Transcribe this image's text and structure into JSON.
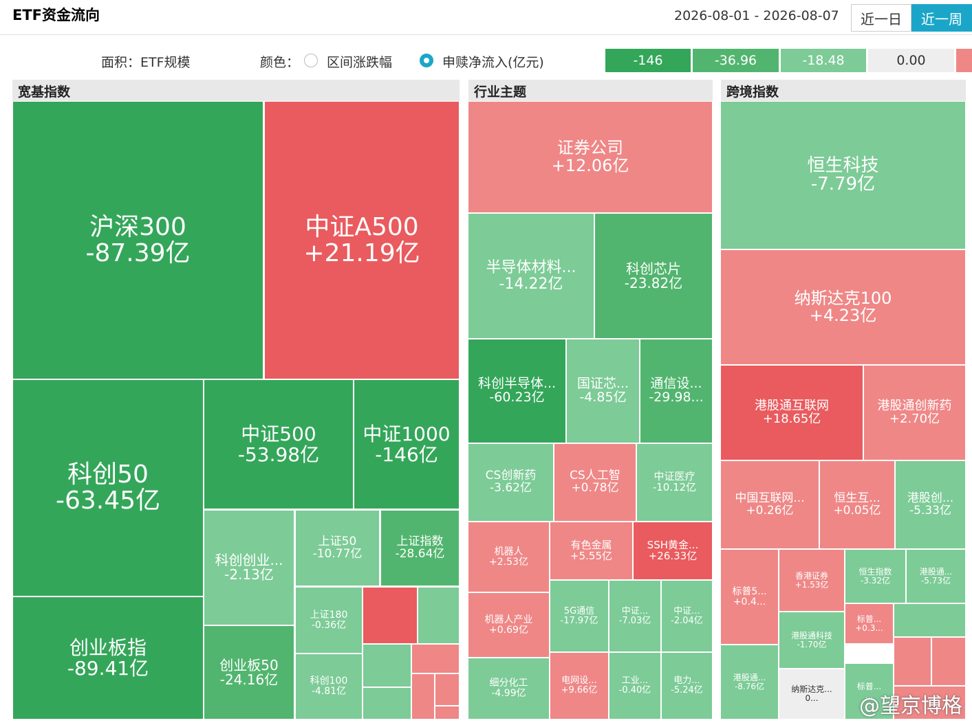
{
  "header": {
    "title": "ETF资金流向",
    "date_range": "2026-08-01 - 2026-08-07",
    "tabs": [
      "近一日",
      "近一周"
    ]
  },
  "options": {
    "area_label": "面积：ETF规模",
    "color_label": "颜色：",
    "radio": [
      "区间涨跌幅",
      "申赎净流入(亿元)"
    ]
  },
  "legend": [
    "-146",
    "-36.96",
    "-18.48",
    "0.00"
  ],
  "sections": [
    {
      "title": "宽基指数",
      "tiles": [
        {
          "name": "沪深300",
          "value": "-87.39亿"
        },
        {
          "name": "中证A500",
          "value": "+21.19亿"
        },
        {
          "name": "科创50",
          "value": "-63.45亿"
        },
        {
          "name": "中证500",
          "value": "-53.98亿"
        },
        {
          "name": "中证1000",
          "value": "-146亿"
        },
        {
          "name": "科创创业...",
          "value": "-2.13亿"
        },
        {
          "name": "上证50",
          "value": "-10.77亿"
        },
        {
          "name": "上证指数",
          "value": "-28.64亿"
        },
        {
          "name": "创业板指",
          "value": "-89.41亿"
        },
        {
          "name": "创业板50",
          "value": "-24.16亿"
        },
        {
          "name": "上证180",
          "value": "-0.36亿"
        },
        {
          "name": "科创100",
          "value": "-4.81亿"
        }
      ]
    },
    {
      "title": "行业主题",
      "tiles": [
        {
          "name": "证券公司",
          "value": "+12.06亿"
        },
        {
          "name": "半导体材料...",
          "value": "-14.22亿"
        },
        {
          "name": "科创芯片",
          "value": "-23.82亿"
        },
        {
          "name": "科创半导体...",
          "value": "-60.23亿"
        },
        {
          "name": "国证芯...",
          "value": "-4.85亿"
        },
        {
          "name": "通信设...",
          "value": "-29.98..."
        },
        {
          "name": "CS创新药",
          "value": "-3.62亿"
        },
        {
          "name": "CS人工智",
          "value": "+0.78亿"
        },
        {
          "name": "中证医疗",
          "value": "-10.12亿"
        },
        {
          "name": "机器人",
          "value": "+2.53亿"
        },
        {
          "name": "有色金属",
          "value": "+5.55亿"
        },
        {
          "name": "SSH黄金...",
          "value": "+26.33亿"
        },
        {
          "name": "机器人产业",
          "value": "+0.69亿"
        },
        {
          "name": "5G通信",
          "value": "-17.97亿"
        },
        {
          "name": "中证...",
          "value": "-7.03亿"
        },
        {
          "name": "中证...",
          "value": "-2.04亿"
        },
        {
          "name": "细分化工",
          "value": "-4.99亿"
        },
        {
          "name": "电网设...",
          "value": "+9.66亿"
        },
        {
          "name": "工业...",
          "value": "-0.40亿"
        },
        {
          "name": "电力...",
          "value": "-5.24亿"
        }
      ]
    },
    {
      "title": "跨境指数",
      "tiles": [
        {
          "name": "恒生科技",
          "value": "-7.79亿"
        },
        {
          "name": "纳斯达克100",
          "value": "+4.23亿"
        },
        {
          "name": "港股通互联网",
          "value": "+18.65亿"
        },
        {
          "name": "港股通创新药",
          "value": "+2.70亿"
        },
        {
          "name": "中国互联网...",
          "value": "+0.26亿"
        },
        {
          "name": "恒生互...",
          "value": "+0.05亿"
        },
        {
          "name": "港股创...",
          "value": "-5.33亿"
        },
        {
          "name": "标普5...",
          "value": "+0.4..."
        },
        {
          "name": "香港证券",
          "value": "+1.53亿"
        },
        {
          "name": "恒生指数",
          "value": "-3.32亿"
        },
        {
          "name": "港股通...",
          "value": "-5.73亿"
        },
        {
          "name": "港股通科技",
          "value": "-1.70亿"
        },
        {
          "name": "标普...",
          "value": "+0.3..."
        },
        {
          "name": "港股通...",
          "value": "-8.76亿"
        },
        {
          "name": "纳斯达克...",
          "value": "0..."
        },
        {
          "name": "标普...",
          "value": "..."
        }
      ]
    }
  ],
  "watermark": "@望京博格"
}
